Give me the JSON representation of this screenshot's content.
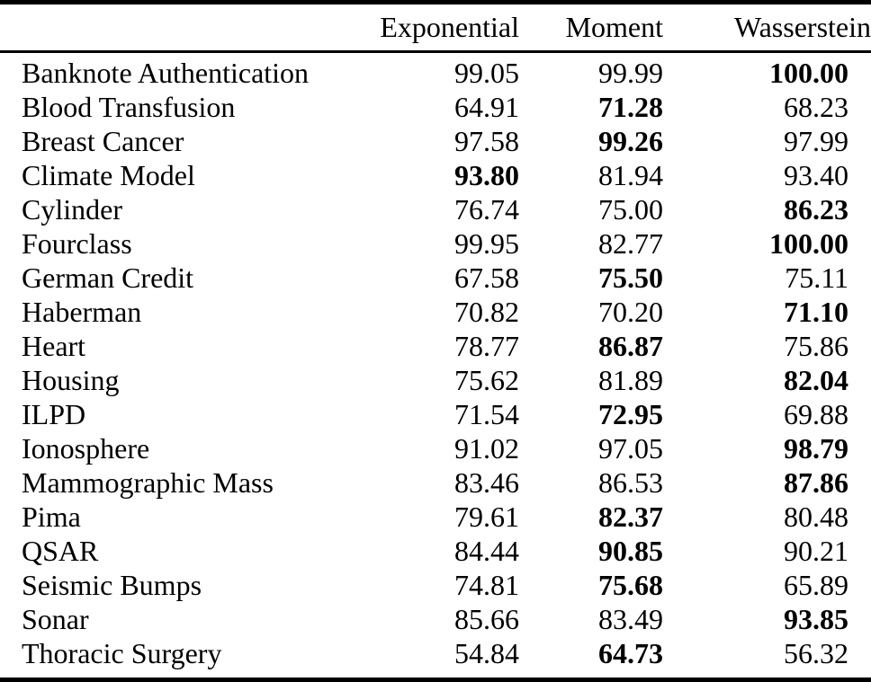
{
  "colors": {
    "text": "#000000",
    "background": "#ffffff",
    "rule": "#000000"
  },
  "table": {
    "columns": [
      "",
      "Exponential",
      "Moment",
      "Wasserstein"
    ],
    "rows": [
      {
        "name": "Banknote Authentication",
        "values": [
          "99.05",
          "99.99",
          "100.00"
        ],
        "bold": 2
      },
      {
        "name": "Blood Transfusion",
        "values": [
          "64.91",
          "71.28",
          "68.23"
        ],
        "bold": 1
      },
      {
        "name": "Breast Cancer",
        "values": [
          "97.58",
          "99.26",
          "97.99"
        ],
        "bold": 1
      },
      {
        "name": "Climate Model",
        "values": [
          "93.80",
          "81.94",
          "93.40"
        ],
        "bold": 0
      },
      {
        "name": "Cylinder",
        "values": [
          "76.74",
          "75.00",
          "86.23"
        ],
        "bold": 2
      },
      {
        "name": "Fourclass",
        "values": [
          "99.95",
          "82.77",
          "100.00"
        ],
        "bold": 2
      },
      {
        "name": "German Credit",
        "values": [
          "67.58",
          "75.50",
          "75.11"
        ],
        "bold": 1
      },
      {
        "name": "Haberman",
        "values": [
          "70.82",
          "70.20",
          "71.10"
        ],
        "bold": 2
      },
      {
        "name": "Heart",
        "values": [
          "78.77",
          "86.87",
          "75.86"
        ],
        "bold": 1
      },
      {
        "name": "Housing",
        "values": [
          "75.62",
          "81.89",
          "82.04"
        ],
        "bold": 2
      },
      {
        "name": "ILPD",
        "values": [
          "71.54",
          "72.95",
          "69.88"
        ],
        "bold": 1
      },
      {
        "name": "Ionosphere",
        "values": [
          "91.02",
          "97.05",
          "98.79"
        ],
        "bold": 2
      },
      {
        "name": "Mammographic Mass",
        "values": [
          "83.46",
          "86.53",
          "87.86"
        ],
        "bold": 2
      },
      {
        "name": "Pima",
        "values": [
          "79.61",
          "82.37",
          "80.48"
        ],
        "bold": 1
      },
      {
        "name": "QSAR",
        "values": [
          "84.44",
          "90.85",
          "90.21"
        ],
        "bold": 1
      },
      {
        "name": "Seismic Bumps",
        "values": [
          "74.81",
          "75.68",
          "65.89"
        ],
        "bold": 1
      },
      {
        "name": "Sonar",
        "values": [
          "85.66",
          "83.49",
          "93.85"
        ],
        "bold": 2
      },
      {
        "name": "Thoracic Surgery",
        "values": [
          "54.84",
          "64.73",
          "56.32"
        ],
        "bold": 1
      }
    ]
  }
}
